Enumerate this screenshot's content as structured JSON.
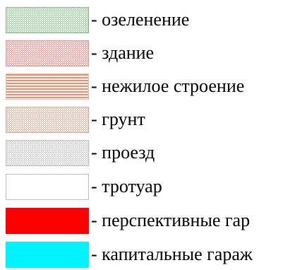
{
  "legend": {
    "items": [
      {
        "label": "- озеленение",
        "color": "#3d9e3d"
      },
      {
        "label": "- здание",
        "color": "#ff2b2b"
      },
      {
        "label": "- нежилое строение",
        "color": "#fb8a6b"
      },
      {
        "label": "- грунт",
        "color": "#b9724f"
      },
      {
        "label": "- проезд",
        "color": "#9f9f9f"
      },
      {
        "label": "- тротуар",
        "color": "#ffffff"
      },
      {
        "label": "- перспективные гар",
        "color": "#ff0000"
      },
      {
        "label": "- капитальные гараж",
        "color": "#00f3ff"
      }
    ]
  }
}
